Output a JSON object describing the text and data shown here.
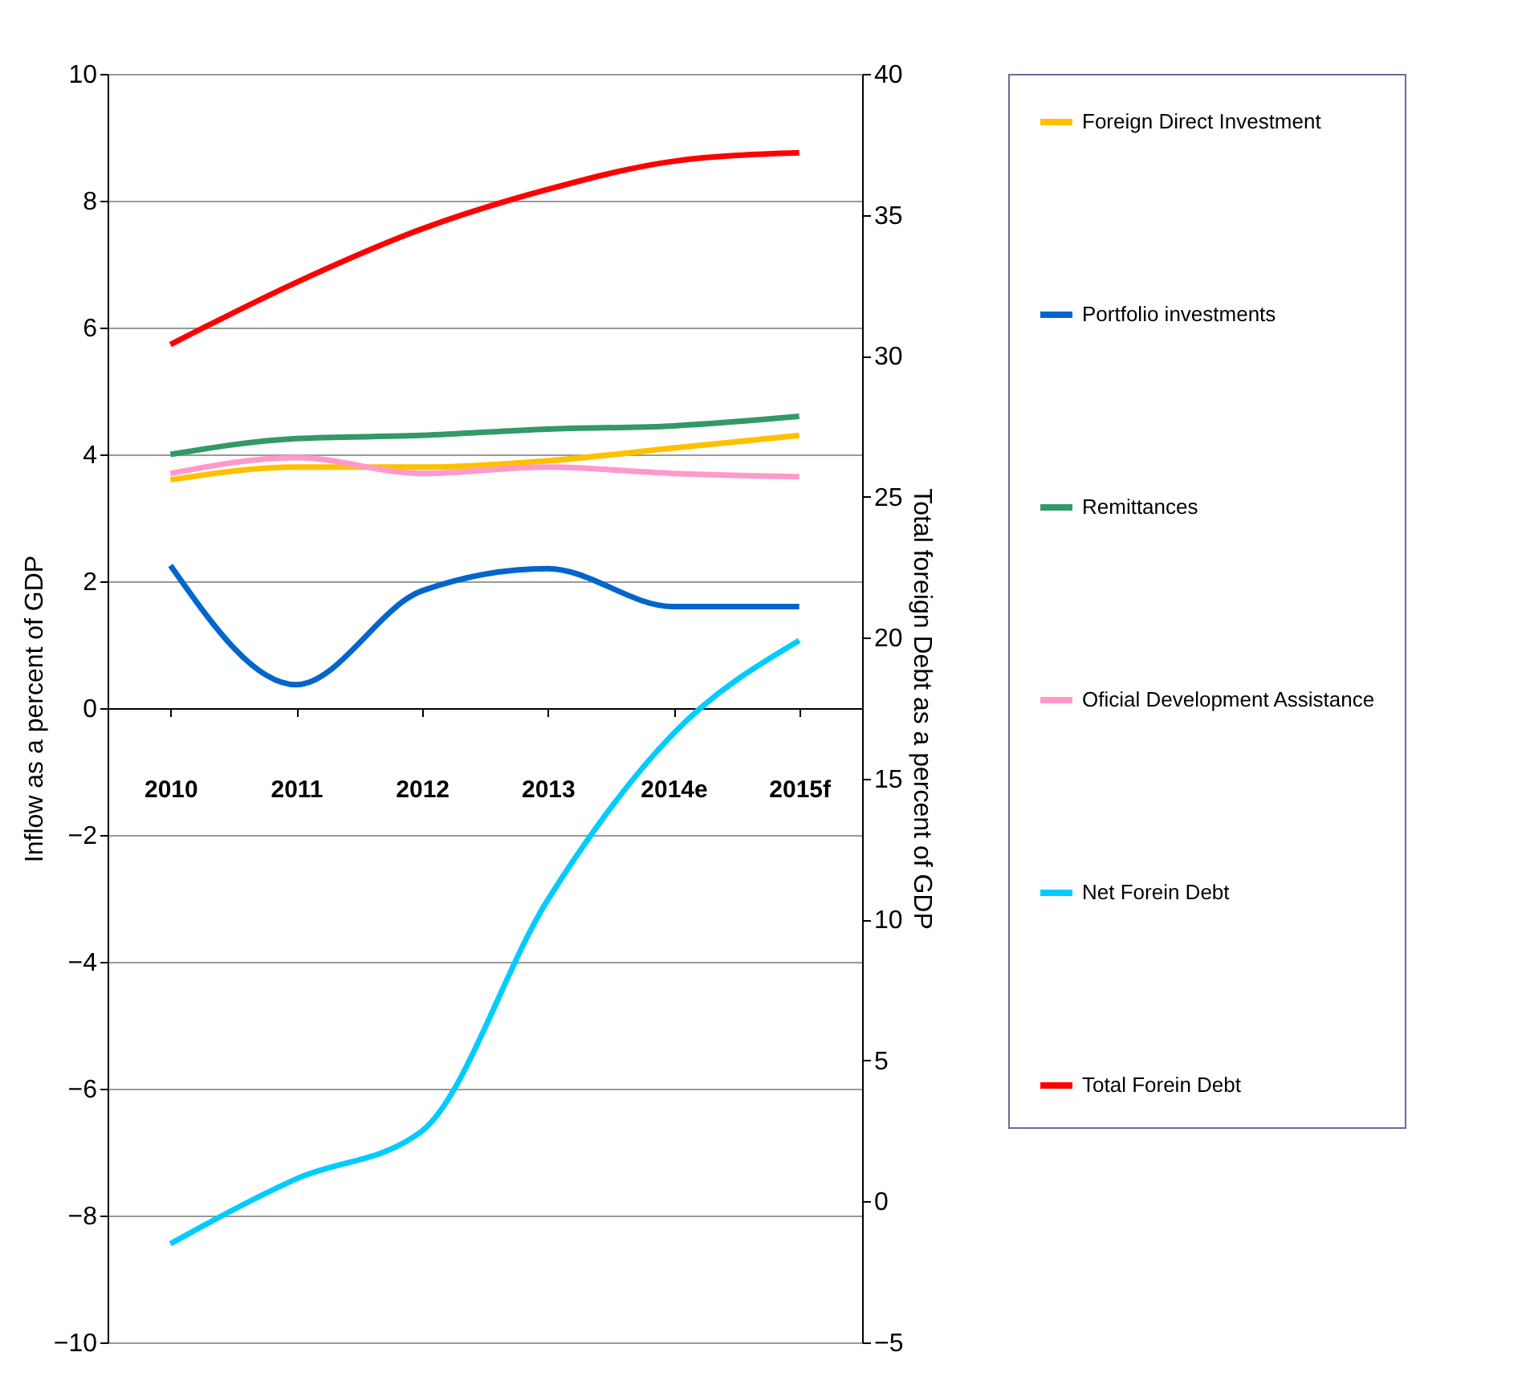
{
  "chart_data": {
    "type": "line",
    "xlabel": null,
    "ylabel": "Inflow as a percent of GDP",
    "y2label": "Total foreign Debt as a percent of GDP",
    "categories": [
      "2010",
      "2011",
      "2012",
      "2013",
      "2014e",
      "2015f"
    ],
    "series": [
      {
        "name": "Foreign Direct Investment",
        "color": "#ffc000",
        "values": [
          3.6,
          3.8,
          3.8,
          3.9,
          4.1,
          4.3
        ]
      },
      {
        "name": "Portfolio investments",
        "color": "#0066cc",
        "values": [
          2.25,
          0.37,
          1.85,
          2.2,
          1.6,
          1.6
        ]
      },
      {
        "name": "Remittances",
        "color": "#339966",
        "values": [
          4.0,
          4.25,
          4.3,
          4.4,
          4.45,
          4.6
        ]
      },
      {
        "name": "Oficial Development Assistance",
        "color": "#ff99cc",
        "values": [
          3.7,
          3.95,
          3.7,
          3.8,
          3.7,
          3.65
        ]
      },
      {
        "name": "Net Forein Debt",
        "color": "#00ccff",
        "axis": "y2",
        "values": [
          -1.5,
          0.8,
          2.5,
          10.7,
          16.6,
          19.9
        ]
      },
      {
        "name": "Total Forein Debt",
        "color": "#ff0000",
        "axis": "y2",
        "values": [
          30.4,
          32.6,
          34.5,
          35.9,
          36.9,
          37.2
        ]
      }
    ],
    "ylim": [
      -10,
      10
    ],
    "yticks": [
      -10,
      -8,
      -6,
      -4,
      -2,
      0,
      2,
      4,
      6,
      8,
      10
    ],
    "y2lim": [
      -5,
      40
    ],
    "y2ticks": [
      -5,
      0,
      5,
      10,
      15,
      20,
      25,
      30,
      35,
      40
    ],
    "grid": "y",
    "legend": "right",
    "marker": "none",
    "line_style": "solid"
  }
}
